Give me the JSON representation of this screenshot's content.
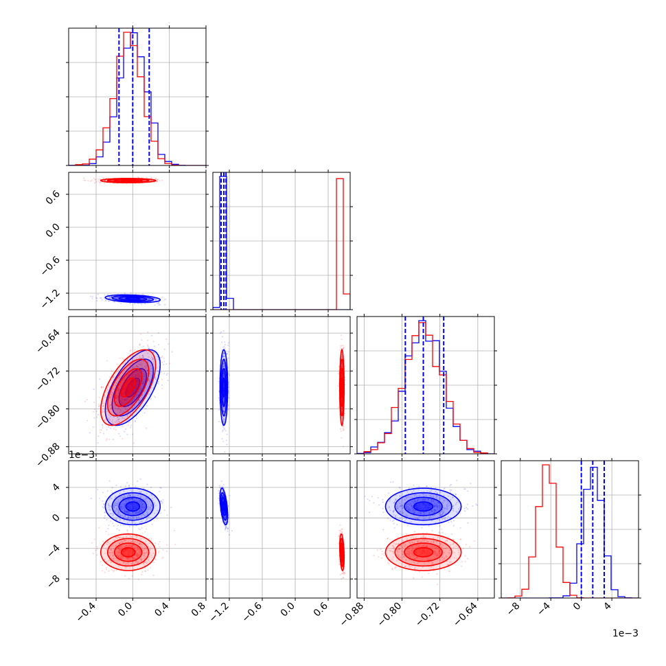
{
  "chart_data": {
    "type": "corner",
    "parameters": [
      {
        "range": [
          -0.7,
          0.8
        ],
        "ticks": [
          -0.4,
          0.0,
          0.4,
          0.8
        ],
        "tick_labels": [
          "−0.4",
          "0.0",
          "0.4",
          "0.8"
        ]
      },
      {
        "range": [
          -1.5,
          1.0
        ],
        "ticks": [
          -1.2,
          -0.6,
          0.0,
          0.6
        ],
        "tick_labels": [
          "−1.2",
          "−0.6",
          "0.0",
          "0.6"
        ]
      },
      {
        "range": [
          -0.895,
          -0.605
        ],
        "ticks": [
          -0.88,
          -0.8,
          -0.72,
          -0.64
        ],
        "tick_labels": [
          "−0.88",
          "−0.80",
          "−0.72",
          "−0.64"
        ]
      },
      {
        "range": [
          -0.0105,
          0.0075
        ],
        "ticks": [
          -0.008,
          -0.004,
          0.0,
          0.004
        ],
        "tick_labels": [
          "−8",
          "−4",
          "0",
          "4"
        ],
        "offset_label": "1e−3"
      }
    ],
    "series": [
      {
        "color": "#0000ff",
        "means": [
          0.0,
          -1.3,
          -0.755,
          0.0015
        ],
        "stds": [
          0.15,
          0.035,
          0.04,
          0.0012
        ],
        "correlations": {
          "0-1": -0.3,
          "0-2": 0.6,
          "1-2": 0.0,
          "0-3": 0.0,
          "1-3": -0.5,
          "2-3": 0.0
        },
        "quantiles": [
          [
            -0.15,
            0.0,
            0.18
          ],
          [
            -1.35,
            -1.3,
            -1.26
          ],
          [
            -0.793,
            -0.755,
            -0.712
          ],
          [
            0.0,
            0.0015,
            0.003
          ]
        ]
      },
      {
        "color": "#ff0000",
        "means": [
          -0.05,
          0.85,
          -0.755,
          -0.0045
        ],
        "stds": [
          0.15,
          0.02,
          0.04,
          0.0012
        ],
        "correlations": {
          "0-1": 0.0,
          "0-2": 0.6,
          "1-2": 0.0,
          "0-3": 0.0,
          "1-3": -0.3,
          "2-3": 0.0
        }
      }
    ],
    "histogram_bins": 20,
    "quantile_lines": "blue dashed",
    "grid": true
  }
}
